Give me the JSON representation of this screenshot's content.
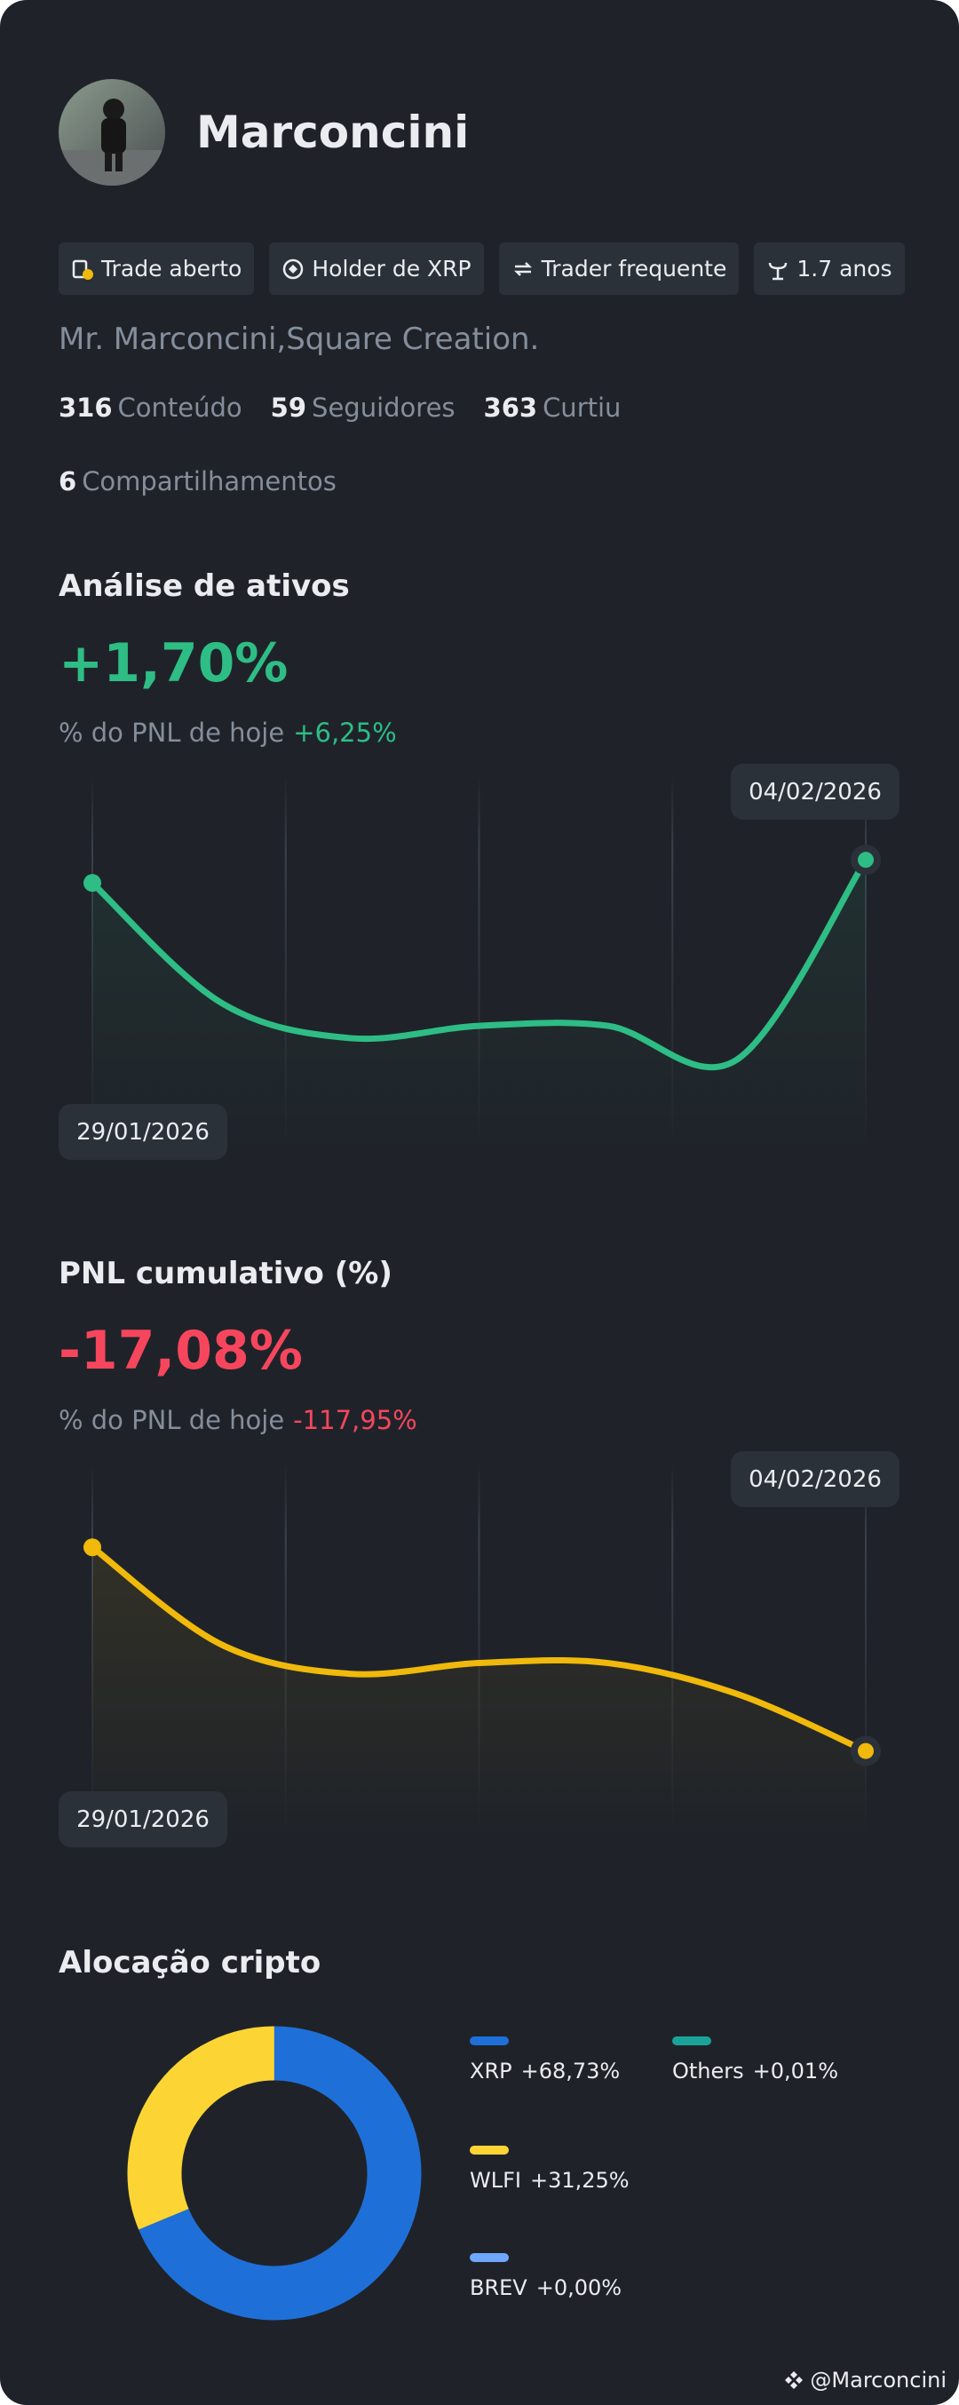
{
  "profile": {
    "name": "Marconcini",
    "tags": [
      "Trade aberto",
      "Holder de XRP",
      "Trader frequente",
      "1.7 anos"
    ],
    "bio": "Mr. Marconcini,Square Creation.",
    "stats": [
      {
        "value": 316,
        "label": "Conteúdo"
      },
      {
        "value": 59,
        "label": "Seguidores"
      },
      {
        "value": 363,
        "label": "Curtiu"
      },
      {
        "value": 6,
        "label": "Compartilhamentos"
      }
    ]
  },
  "charts": [
    {
      "type": "line",
      "title": "Análise de ativos",
      "headline": "+1,70%",
      "headline_color": "#2ebd85",
      "subtitle": "% do PNL de hoje",
      "subtitle_value": "+6,25%",
      "x": [
        "29/01/2026",
        null,
        null,
        null,
        null,
        null,
        "04/02/2026"
      ],
      "values": [
        1.55,
        0.77,
        0.54,
        0.62,
        0.62,
        0.4,
        1.7
      ],
      "color": "#2ebd85",
      "ylim": [
        -0.2,
        2.25
      ]
    },
    {
      "type": "line",
      "title": "PNL cumulativo (%)",
      "headline": "-17,08%",
      "headline_color": "#f6465d",
      "subtitle": "% do PNL de hoje",
      "subtitle_value": "-117,95%",
      "x": [
        "29/01/2026",
        null,
        null,
        null,
        null,
        null,
        "04/02/2026"
      ],
      "values": [
        -3.88,
        -10.18,
        -12.08,
        -11.38,
        -11.38,
        -13.38,
        -17.08
      ],
      "color": "#f0b90b",
      "ylim": [
        -22.8,
        1.6
      ]
    },
    {
      "type": "donut",
      "title": "Alocação cripto",
      "categories": [
        "XRP",
        "WLFI",
        "BREV",
        "Others"
      ],
      "values": [
        68.73,
        31.25,
        0,
        0.01
      ],
      "value_labels": [
        "+68,73%",
        "+31,25%",
        "+0,00%",
        "+0,01%"
      ],
      "colors": [
        "#1f6fd8",
        "#fcd535",
        "#6ea8fe",
        "#1aa39a"
      ]
    }
  ],
  "footer": "@Marconcini"
}
